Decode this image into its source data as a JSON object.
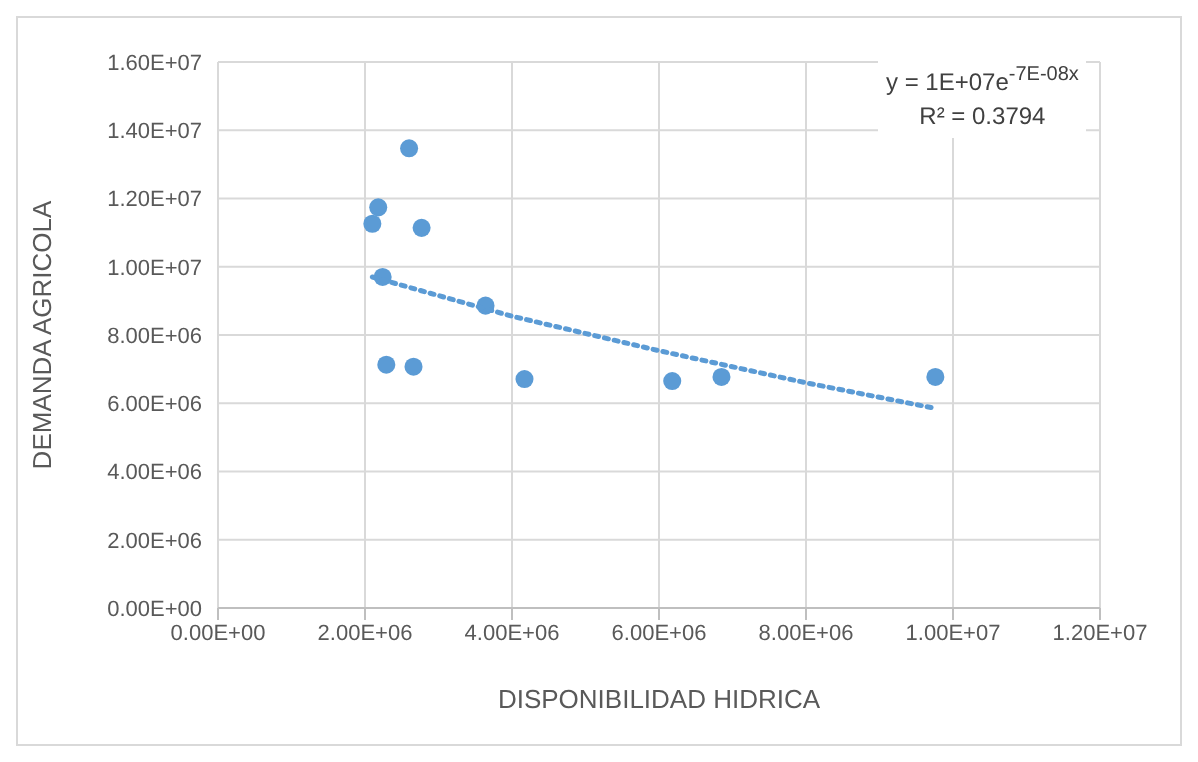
{
  "chart_data": {
    "type": "scatter",
    "xlabel": "DISPONIBILIDAD HIDRICA",
    "ylabel": "DEMANDA AGRICOLA",
    "xlim": [
      0,
      12000000
    ],
    "ylim": [
      0,
      16000000
    ],
    "xticks": [
      {
        "value": 0,
        "label": "0.00E+00"
      },
      {
        "value": 2000000,
        "label": "2.00E+06"
      },
      {
        "value": 4000000,
        "label": "4.00E+06"
      },
      {
        "value": 6000000,
        "label": "6.00E+06"
      },
      {
        "value": 8000000,
        "label": "8.00E+06"
      },
      {
        "value": 10000000,
        "label": "1.00E+07"
      },
      {
        "value": 12000000,
        "label": "1.20E+07"
      }
    ],
    "yticks": [
      {
        "value": 0,
        "label": "0.00E+00"
      },
      {
        "value": 2000000,
        "label": "2.00E+06"
      },
      {
        "value": 4000000,
        "label": "4.00E+06"
      },
      {
        "value": 6000000,
        "label": "6.00E+06"
      },
      {
        "value": 8000000,
        "label": "8.00E+06"
      },
      {
        "value": 10000000,
        "label": "1.00E+07"
      },
      {
        "value": 12000000,
        "label": "1.20E+07"
      },
      {
        "value": 14000000,
        "label": "1.40E+07"
      },
      {
        "value": 16000000,
        "label": "1.60E+07"
      }
    ],
    "grid": true,
    "annotations": [
      "y = 1E+07e$^{-7E-08x}$",
      "R² = 0.3794"
    ],
    "series": [
      {
        "marker": "circle",
        "color": "#5b9bd5",
        "x": [
          2100000,
          2180000,
          2240000,
          2290000,
          2600000,
          2660000,
          2770000,
          3640000,
          4170000,
          6180000,
          6850000,
          9760000
        ],
        "values": [
          11260000,
          11740000,
          9700000,
          7130000,
          13470000,
          7070000,
          11140000,
          8860000,
          6710000,
          6650000,
          6770000,
          6770000
        ]
      },
      {
        "type": "line",
        "marker": "none",
        "color": "#5b9bd5",
        "line_style": "dotted",
        "x": [
          2100000,
          4000000,
          6000000,
          8000000,
          9760000
        ],
        "values": [
          9700000,
          8550000,
          7540000,
          6600000,
          5850000
        ]
      }
    ]
  }
}
